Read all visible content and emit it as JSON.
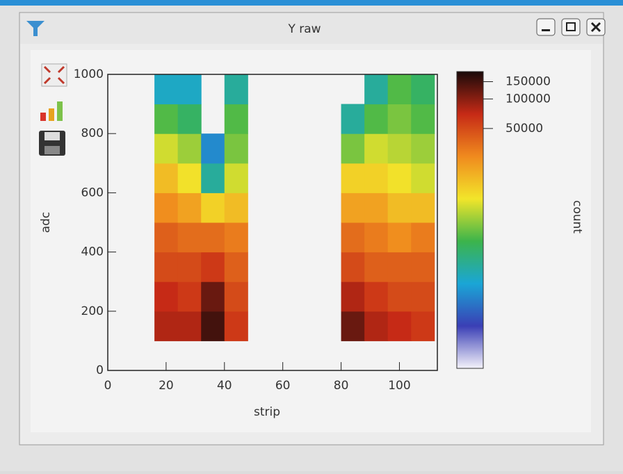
{
  "window": {
    "title": "Y raw"
  },
  "chart_data": {
    "type": "heatmap",
    "x_label": "strip",
    "y_label": "adc",
    "z_label": "count",
    "x_bins": [
      0,
      8,
      16,
      24,
      32,
      40,
      48,
      56,
      64,
      72,
      80,
      88,
      96,
      104,
      112
    ],
    "y_bins": [
      0,
      100,
      200,
      300,
      400,
      500,
      600,
      700,
      800,
      900,
      1000
    ],
    "values": [
      [
        null,
        null,
        null,
        null,
        null,
        null,
        null,
        null,
        null,
        null,
        null,
        null,
        null,
        null
      ],
      [
        null,
        null,
        80000,
        80000,
        150000,
        60000,
        null,
        null,
        null,
        null,
        120000,
        80000,
        70000,
        60000
      ],
      [
        null,
        null,
        70000,
        60000,
        120000,
        50000,
        null,
        null,
        null,
        null,
        80000,
        60000,
        50000,
        50000
      ],
      [
        null,
        null,
        50000,
        50000,
        60000,
        40000,
        null,
        null,
        null,
        null,
        50000,
        40000,
        40000,
        40000
      ],
      [
        null,
        null,
        40000,
        35000,
        35000,
        30000,
        null,
        null,
        null,
        null,
        35000,
        30000,
        25000,
        30000
      ],
      [
        null,
        null,
        25000,
        20000,
        12000,
        15000,
        null,
        null,
        null,
        null,
        20000,
        20000,
        15000,
        15000
      ],
      [
        null,
        null,
        15000,
        10000,
        2000,
        8000,
        null,
        null,
        null,
        null,
        12000,
        12000,
        10000,
        8000
      ],
      [
        null,
        null,
        8000,
        6000,
        1000,
        5000,
        null,
        null,
        null,
        null,
        5000,
        8000,
        7000,
        6000
      ],
      [
        null,
        null,
        4000,
        3000,
        null,
        4000,
        null,
        null,
        null,
        null,
        2000,
        4000,
        5000,
        4000
      ],
      [
        null,
        null,
        1500,
        1500,
        null,
        2000,
        null,
        null,
        null,
        null,
        null,
        2000,
        4000,
        3000
      ]
    ],
    "xlim": [
      0,
      113
    ],
    "xticks": [
      0,
      20,
      40,
      60,
      80,
      100
    ],
    "ylim": [
      0,
      1000
    ],
    "yticks": [
      0,
      200,
      400,
      600,
      800,
      1000
    ],
    "zlim": [
      180,
      190000
    ],
    "zticks": [
      50000,
      100000,
      150000
    ],
    "zscale": "log",
    "colormap": [
      "#f4f2fa",
      "#3a3fb5",
      "#1aa6d6",
      "#3cb44b",
      "#f2e52a",
      "#f08a1e",
      "#c62a16",
      "#1a0a0a"
    ]
  }
}
